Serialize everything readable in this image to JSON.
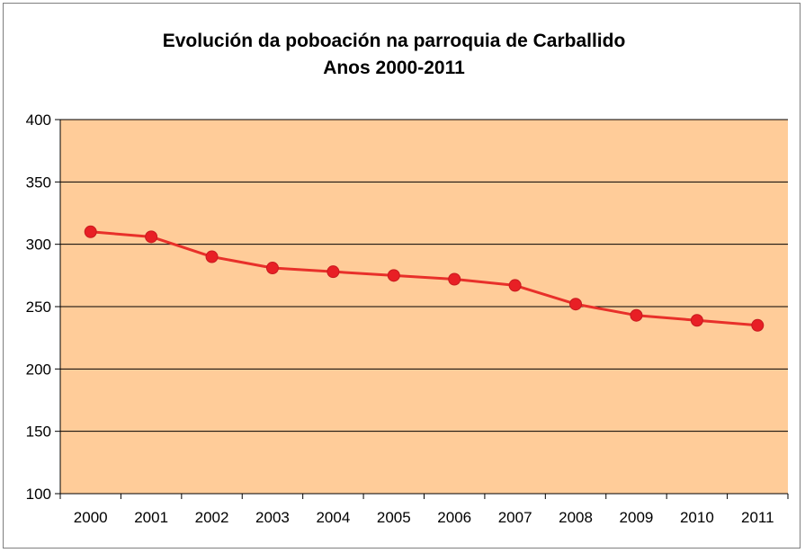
{
  "chart_data": {
    "type": "line",
    "title": "Evolución da poboación na parroquia de Carballido",
    "subtitle": "Anos 2000-2011",
    "xlabel": "",
    "ylabel": "",
    "categories": [
      "2000",
      "2001",
      "2002",
      "2003",
      "2004",
      "2005",
      "2006",
      "2007",
      "2008",
      "2009",
      "2010",
      "2011"
    ],
    "series": [
      {
        "values": [
          310,
          306,
          290,
          281,
          278,
          275,
          272,
          267,
          252,
          243,
          239,
          235
        ]
      }
    ],
    "ylim": [
      100,
      400
    ],
    "yticks": [
      "100",
      "150",
      "200",
      "250",
      "300",
      "350",
      "400"
    ],
    "grid": true,
    "legend": "none",
    "colors": {
      "plot_background": "#FFCC99",
      "line": "#E8302A",
      "marker": "#E81F25",
      "gridline": "#000000"
    }
  }
}
